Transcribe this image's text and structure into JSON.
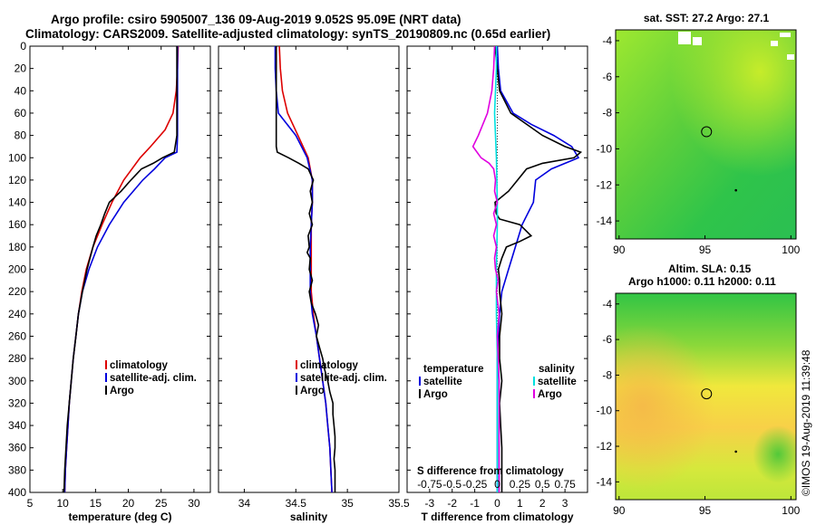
{
  "title_line1": "Argo profile: csiro 5905007_136 09-Aug-2019 9.052S 95.09E (NRT data)",
  "title_line2": "Climatology: CARS2009. Satellite-adjusted climatology: synTS_20190809.nc (0.65d earlier)",
  "watermark": "©IMOS 19-Aug-2019 11:39:48",
  "colors": {
    "climatology": "#dd0000",
    "satellite": "#0000dd",
    "argo": "#000000",
    "sal_satellite": "#00e0e0",
    "sal_argo": "#e000e0"
  },
  "chart_data": [
    {
      "type": "line",
      "id": "temperature",
      "xlabel": "temperature (deg C)",
      "ylabel": "",
      "xlim": [
        5,
        32.5
      ],
      "ylim": [
        400,
        0
      ],
      "x_ticks": [
        5,
        10,
        15,
        20,
        25,
        30
      ],
      "y_ticks": [
        0,
        20,
        40,
        60,
        80,
        100,
        120,
        140,
        160,
        180,
        200,
        220,
        240,
        260,
        280,
        300,
        320,
        340,
        360,
        380,
        400
      ],
      "legend": [
        "climatology",
        "satellite-adj. clim.",
        "Argo"
      ],
      "series": [
        {
          "name": "climatology",
          "color": "#dd0000",
          "depth": [
            0,
            20,
            40,
            60,
            75,
            90,
            100,
            120,
            140,
            160,
            180,
            200,
            220,
            240,
            260,
            280,
            300,
            320,
            340,
            360,
            380,
            400
          ],
          "values": [
            27.6,
            27.5,
            27.3,
            26.8,
            25.6,
            23.4,
            21.8,
            19.3,
            17.5,
            16.0,
            14.6,
            13.6,
            12.9,
            12.4,
            12.0,
            11.6,
            11.3,
            11.0,
            10.8,
            10.6,
            10.4,
            10.3
          ]
        },
        {
          "name": "satellite-adj. clim.",
          "color": "#0000dd",
          "depth": [
            0,
            20,
            40,
            60,
            80,
            95,
            100,
            110,
            120,
            140,
            160,
            180,
            200,
            220,
            240,
            260,
            280,
            300,
            320,
            340,
            360,
            380,
            400
          ],
          "values": [
            27.5,
            27.5,
            27.5,
            27.5,
            27.5,
            27.4,
            25.6,
            24.0,
            22.2,
            19.3,
            17.1,
            15.3,
            14.0,
            13.0,
            12.4,
            12.0,
            11.6,
            11.3,
            11.0,
            10.8,
            10.6,
            10.4,
            10.3
          ]
        },
        {
          "name": "Argo",
          "color": "#000000",
          "depth": [
            0,
            20,
            40,
            60,
            80,
            95,
            100,
            105,
            110,
            120,
            130,
            140,
            150,
            160,
            170,
            180,
            200,
            220,
            240,
            260,
            280,
            300,
            320,
            340,
            360,
            380,
            400
          ],
          "values": [
            27.4,
            27.4,
            27.4,
            27.4,
            27.4,
            27.0,
            25.2,
            23.8,
            22.0,
            20.4,
            18.9,
            17.1,
            16.4,
            15.8,
            15.1,
            14.6,
            13.7,
            13.0,
            12.4,
            12.0,
            11.6,
            11.3,
            11.0,
            10.7,
            10.5,
            10.3,
            10.2
          ]
        }
      ]
    },
    {
      "type": "line",
      "id": "salinity",
      "xlabel": "salinity",
      "ylabel": "",
      "xlim": [
        33.75,
        35.5
      ],
      "ylim": [
        400,
        0
      ],
      "x_ticks": [
        34,
        34.5,
        35,
        35.5
      ],
      "legend": [
        "climatology",
        "satellite-adj. clim.",
        "Argo"
      ],
      "series": [
        {
          "name": "climatology",
          "color": "#dd0000",
          "depth": [
            0,
            20,
            40,
            60,
            80,
            100,
            120,
            140,
            160,
            180,
            200,
            220,
            240,
            260,
            280,
            300,
            320,
            340,
            360,
            380,
            400
          ],
          "values": [
            34.34,
            34.35,
            34.37,
            34.42,
            34.52,
            34.62,
            34.66,
            34.66,
            34.65,
            34.65,
            34.65,
            34.65,
            34.67,
            34.7,
            34.73,
            34.76,
            34.79,
            34.81,
            34.83,
            34.84,
            34.85
          ]
        },
        {
          "name": "satellite-adj. clim.",
          "color": "#0000dd",
          "depth": [
            0,
            20,
            40,
            60,
            80,
            100,
            120,
            140,
            160,
            180,
            200,
            220,
            240,
            260,
            280,
            300,
            320,
            340,
            360,
            380,
            400
          ],
          "values": [
            34.3,
            34.3,
            34.31,
            34.33,
            34.5,
            34.61,
            34.66,
            34.66,
            34.65,
            34.64,
            34.64,
            34.64,
            34.66,
            34.7,
            34.73,
            34.76,
            34.79,
            34.81,
            34.83,
            34.84,
            34.85
          ]
        },
        {
          "name": "Argo",
          "color": "#000000",
          "depth": [
            0,
            20,
            40,
            60,
            80,
            90,
            95,
            100,
            105,
            110,
            120,
            130,
            140,
            150,
            160,
            170,
            180,
            185,
            190,
            200,
            210,
            220,
            230,
            240,
            250,
            260,
            270,
            280,
            290,
            300,
            310,
            320,
            330,
            340,
            350,
            360,
            370,
            380,
            390,
            400
          ],
          "values": [
            34.31,
            34.31,
            34.31,
            34.31,
            34.31,
            34.31,
            34.32,
            34.43,
            34.53,
            34.62,
            34.67,
            34.64,
            34.66,
            34.63,
            34.66,
            34.62,
            34.63,
            34.61,
            34.64,
            34.63,
            34.66,
            34.63,
            34.65,
            34.69,
            34.72,
            34.7,
            34.73,
            34.76,
            34.78,
            34.81,
            34.83,
            34.86,
            34.86,
            34.87,
            34.88,
            34.88,
            34.87,
            34.88,
            34.88,
            34.88
          ]
        }
      ]
    },
    {
      "type": "line",
      "id": "difference",
      "xlabel": "T difference from climatology",
      "ylabel": "",
      "x_label_top": "S difference from climatology",
      "xlim": [
        -4,
        4
      ],
      "ylim": [
        400,
        0
      ],
      "x_ticks": [
        -3,
        -2,
        -1,
        0,
        1,
        2,
        3
      ],
      "x_ticks_s": [
        "-0.75",
        "-0.5",
        "-0.25",
        "0",
        "0.25",
        "0.5",
        "0.75"
      ],
      "legend_temperature_title": "temperature",
      "legend_salinity_title": "salinity",
      "legend": [
        "satellite",
        "Argo",
        "satellite",
        "Argo"
      ],
      "series": [
        {
          "name": "T satellite",
          "color": "#0000dd",
          "depth": [
            0,
            20,
            40,
            60,
            70,
            80,
            90,
            100,
            110,
            120,
            140,
            160,
            180,
            200,
            220,
            240,
            260,
            280,
            300,
            320,
            340,
            360,
            380,
            400
          ],
          "values": [
            0,
            0.05,
            0.15,
            0.7,
            1.5,
            2.5,
            3.3,
            3.6,
            2.4,
            1.7,
            1.6,
            1.1,
            0.8,
            0.5,
            0.2,
            0.1,
            0.05,
            0,
            0,
            0,
            0,
            0,
            0,
            0
          ]
        },
        {
          "name": "T Argo",
          "color": "#000000",
          "depth": [
            0,
            20,
            40,
            60,
            80,
            90,
            95,
            100,
            105,
            110,
            120,
            130,
            140,
            150,
            155,
            160,
            170,
            175,
            180,
            190,
            200,
            210,
            220,
            240,
            260,
            280,
            300,
            320,
            340,
            360,
            380,
            400
          ],
          "values": [
            -0.1,
            0,
            0.1,
            0.6,
            2.0,
            3.0,
            3.7,
            3.4,
            2.0,
            1.3,
            0.9,
            0.5,
            -0.1,
            -0.05,
            0.1,
            1.0,
            1.5,
            1.0,
            0.4,
            0.2,
            0.05,
            0.1,
            0.1,
            0.2,
            0.1,
            0.1,
            0.2,
            0.1,
            0.15,
            0.2,
            0.2,
            0.2
          ]
        },
        {
          "name": "S satellite",
          "color": "#00e0e0",
          "depth": [
            0,
            20,
            40,
            60,
            80,
            100,
            120,
            140,
            160,
            180,
            200,
            220,
            240,
            260,
            280,
            300,
            320,
            340,
            360,
            380,
            400
          ],
          "values": [
            -0.01,
            -0.01,
            -0.02,
            -0.03,
            -0.02,
            -0.01,
            -0.005,
            0,
            0,
            -0.005,
            -0.01,
            -0.01,
            -0.01,
            -0.005,
            0,
            0,
            0,
            0,
            0,
            0,
            0
          ]
        },
        {
          "name": "S Argo",
          "color": "#e000e0",
          "depth": [
            0,
            20,
            40,
            60,
            80,
            90,
            100,
            105,
            110,
            120,
            130,
            140,
            150,
            160,
            170,
            180,
            190,
            200,
            210,
            220,
            240,
            260,
            280,
            300,
            320,
            340,
            360,
            380,
            400
          ],
          "values": [
            -0.03,
            -0.04,
            -0.06,
            -0.11,
            -0.21,
            -0.27,
            -0.18,
            -0.09,
            -0.04,
            -0.02,
            -0.03,
            0,
            -0.04,
            -0.01,
            -0.04,
            -0.01,
            -0.03,
            -0.02,
            0.01,
            -0.01,
            0.02,
            0,
            0.01,
            0.02,
            0.02,
            0.02,
            0.02,
            0.02,
            0.02
          ]
        }
      ]
    },
    {
      "type": "heatmap",
      "id": "sst_map",
      "title": "sat. SST: 27.2 Argo: 27.1",
      "x_ticks": [
        90,
        95,
        100
      ],
      "y_ticks": [
        -4,
        -6,
        -8,
        -10,
        -12,
        -14
      ],
      "xlim": [
        89.8,
        100.3
      ],
      "ylim": [
        -15,
        -3.4
      ],
      "argo_position": {
        "lon": 95.09,
        "lat": -9.052
      }
    },
    {
      "type": "heatmap",
      "id": "sla_map",
      "title_line1": "Altim. SLA: 0.15",
      "title_line2": "Argo h1000: 0.11 h2000: 0.11",
      "x_ticks": [
        90,
        95,
        100
      ],
      "y_ticks": [
        -4,
        -6,
        -8,
        -10,
        -12,
        -14
      ],
      "xlim": [
        89.8,
        100.3
      ],
      "ylim": [
        -15,
        -3.4
      ],
      "argo_position": {
        "lon": 95.09,
        "lat": -9.052
      }
    }
  ]
}
